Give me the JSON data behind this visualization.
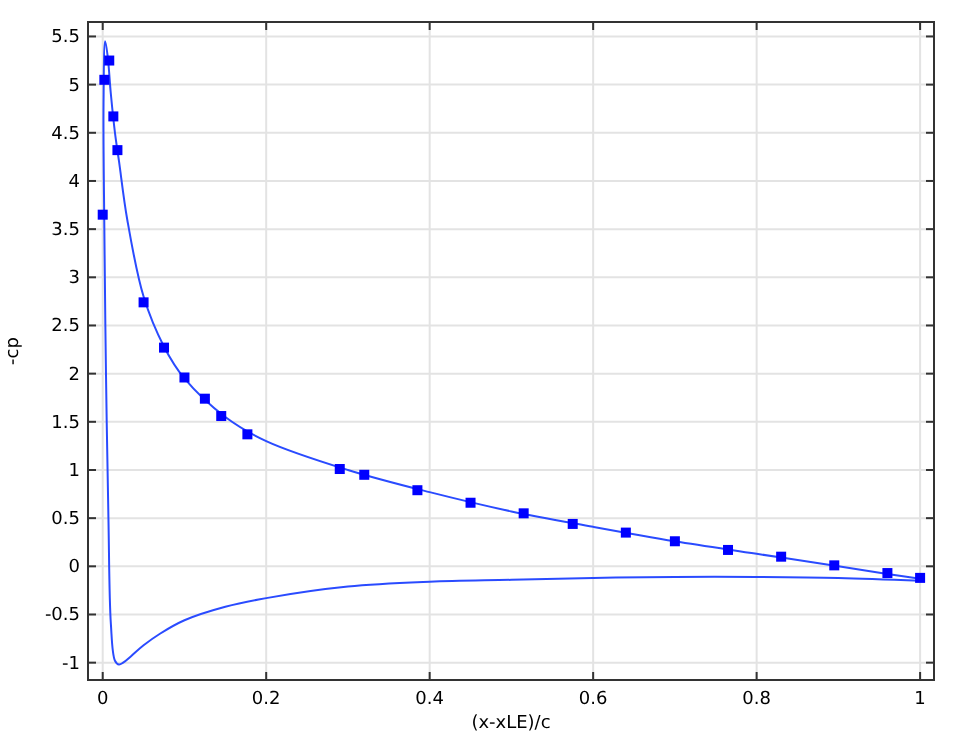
{
  "chart_data": {
    "type": "line",
    "xlabel": "(x-xLE)/c",
    "ylabel": "-cp",
    "xlim": [
      -0.018,
      1.017
    ],
    "ylim": [
      -1.18,
      5.65
    ],
    "xticks": [
      0,
      0.2,
      0.4,
      0.6,
      0.8,
      1
    ],
    "yticks": [
      -1,
      -0.5,
      0,
      0.5,
      1,
      1.5,
      2,
      2.5,
      3,
      3.5,
      4,
      4.5,
      5,
      5.5
    ],
    "grid": true,
    "series": [
      {
        "color": "#2a4bff",
        "marker": "none",
        "x": [
          1,
          0.9,
          0.8,
          0.7,
          0.6,
          0.5,
          0.4,
          0.3,
          0.2,
          0.15,
          0.1,
          0.07,
          0.05,
          0.035,
          0.025,
          0.02,
          0.015,
          0.01,
          0.007,
          0.004,
          0.002,
          0.001,
          0.003,
          0.006,
          0.01,
          0.015,
          0.02,
          0.03,
          0.05,
          0.075,
          0.1,
          0.15,
          0.2,
          0.3,
          0.4,
          0.5,
          0.6,
          0.7,
          0.8,
          0.9,
          0.96,
          1
        ],
        "values": [
          -0.15,
          -0.12,
          -0.11,
          -0.11,
          -0.12,
          -0.14,
          -0.16,
          -0.21,
          -0.33,
          -0.42,
          -0.56,
          -0.7,
          -0.82,
          -0.93,
          -1,
          -1.02,
          -0.98,
          -0.6,
          0.5,
          2,
          3.5,
          4.8,
          5.45,
          5.3,
          4.9,
          4.5,
          4.2,
          3.6,
          2.8,
          2.28,
          1.95,
          1.55,
          1.3,
          1,
          0.77,
          0.57,
          0.41,
          0.26,
          0.13,
          0,
          -0.08,
          -0.13
        ]
      },
      {
        "type": "scatter",
        "color": "#0000ff",
        "marker": "square",
        "x": [
          0,
          0.002,
          0.008,
          0.013,
          0.018,
          0.05,
          0.075,
          0.1,
          0.125,
          0.145,
          0.177,
          0.29,
          0.32,
          0.385,
          0.45,
          0.515,
          0.575,
          0.64,
          0.7,
          0.765,
          0.83,
          0.895,
          0.96,
          1
        ],
        "values": [
          3.65,
          5.05,
          5.25,
          4.67,
          4.32,
          2.74,
          2.27,
          1.96,
          1.74,
          1.56,
          1.37,
          1.01,
          0.95,
          0.79,
          0.66,
          0.55,
          0.44,
          0.35,
          0.26,
          0.17,
          0.1,
          0.01,
          -0.07,
          -0.12
        ]
      }
    ]
  }
}
